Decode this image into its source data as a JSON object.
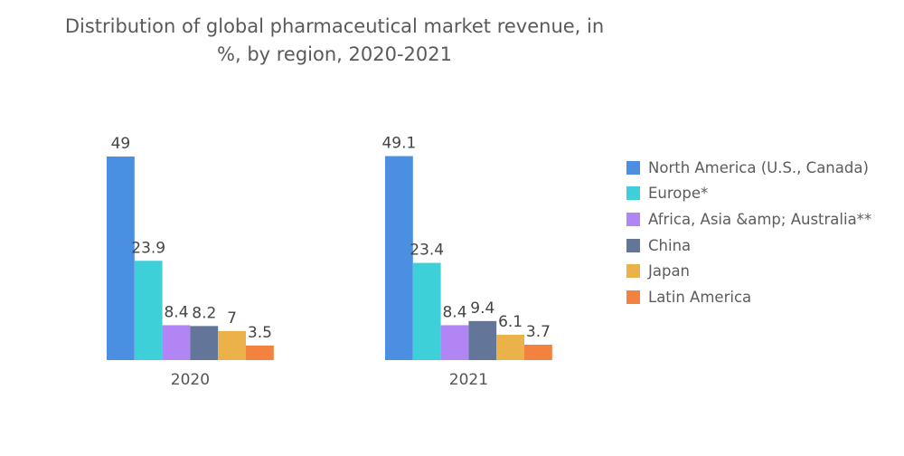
{
  "chart_data": {
    "type": "bar",
    "title": "Distribution of global pharmaceutical market revenue, in %, by region, 2020-2021",
    "title_lines": [
      "Distribution of global pharmaceutical market revenue, in",
      "%, by region, 2020-2021"
    ],
    "xlabel": "",
    "ylabel": "",
    "categories": [
      "2020",
      "2021"
    ],
    "series": [
      {
        "name": "North America (U.S., Canada)",
        "color": "#4a8fe2",
        "values": [
          49,
          49.1
        ]
      },
      {
        "name": "Europe*",
        "color": "#3ed0d8",
        "values": [
          23.9,
          23.4
        ]
      },
      {
        "name": "Africa, Asia &amp; Australia**",
        "color": "#b285f5",
        "values": [
          8.4,
          8.4
        ]
      },
      {
        "name": "China",
        "color": "#637699",
        "values": [
          8.2,
          9.4
        ]
      },
      {
        "name": "Japan",
        "color": "#ecb24a",
        "values": [
          7,
          6.1
        ]
      },
      {
        "name": "Latin America",
        "color": "#f3813f",
        "values": [
          3.5,
          3.7
        ]
      }
    ],
    "data_labels": [
      [
        "49",
        "23.9",
        "8.4",
        "8.2",
        "7",
        "3.5"
      ],
      [
        "49.1",
        "23.4",
        "8.4",
        "9.4",
        "6.1",
        "3.7"
      ]
    ],
    "ylim": [
      0,
      49.1
    ],
    "grid": false,
    "y_axis_visible": false,
    "legend_position": "right"
  }
}
